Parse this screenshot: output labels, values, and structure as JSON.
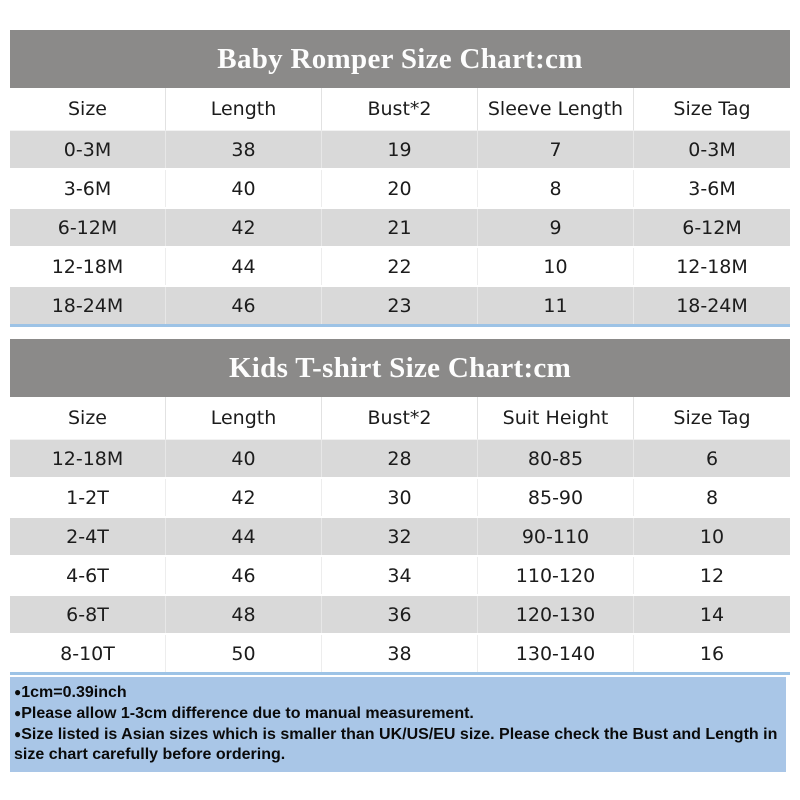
{
  "colors": {
    "title_bar_bg": "#8b8a89",
    "title_text": "#fdfdfd",
    "row_alt_bg": "#d9d9d9",
    "row_bg": "#ffffff",
    "cell_text": "#1c1c1c",
    "blue_line": "#9dc3e6",
    "notes_bg": "#a9c6e7"
  },
  "tables": [
    {
      "title": "Baby Romper Size Chart:cm",
      "columns": [
        "Size",
        "Length",
        "Bust*2",
        "Sleeve Length",
        "Size Tag"
      ],
      "rows": [
        [
          "0-3M",
          "38",
          "19",
          "7",
          "0-3M"
        ],
        [
          "3-6M",
          "40",
          "20",
          "8",
          "3-6M"
        ],
        [
          "6-12M",
          "42",
          "21",
          "9",
          "6-12M"
        ],
        [
          "12-18M",
          "44",
          "22",
          "10",
          "12-18M"
        ],
        [
          "18-24M",
          "46",
          "23",
          "11",
          "18-24M"
        ]
      ]
    },
    {
      "title": "Kids T-shirt Size Chart:cm",
      "columns": [
        "Size",
        "Length",
        "Bust*2",
        "Suit Height",
        "Size Tag"
      ],
      "rows": [
        [
          "12-18M",
          "40",
          "28",
          "80-85",
          "6"
        ],
        [
          "1-2T",
          "42",
          "30",
          "85-90",
          "8"
        ],
        [
          "2-4T",
          "44",
          "32",
          "90-110",
          "10"
        ],
        [
          "4-6T",
          "46",
          "34",
          "110-120",
          "12"
        ],
        [
          "6-8T",
          "48",
          "36",
          "120-130",
          "14"
        ],
        [
          "8-10T",
          "50",
          "38",
          "130-140",
          "16"
        ]
      ]
    }
  ],
  "notes": {
    "bullet": "●",
    "items": [
      "1cm=0.39inch",
      "Please allow 1-3cm difference due to manual measurement.",
      "Size listed is Asian sizes which is smaller than UK/US/EU size. Please check the Bust and Length in size chart carefully before ordering."
    ]
  }
}
